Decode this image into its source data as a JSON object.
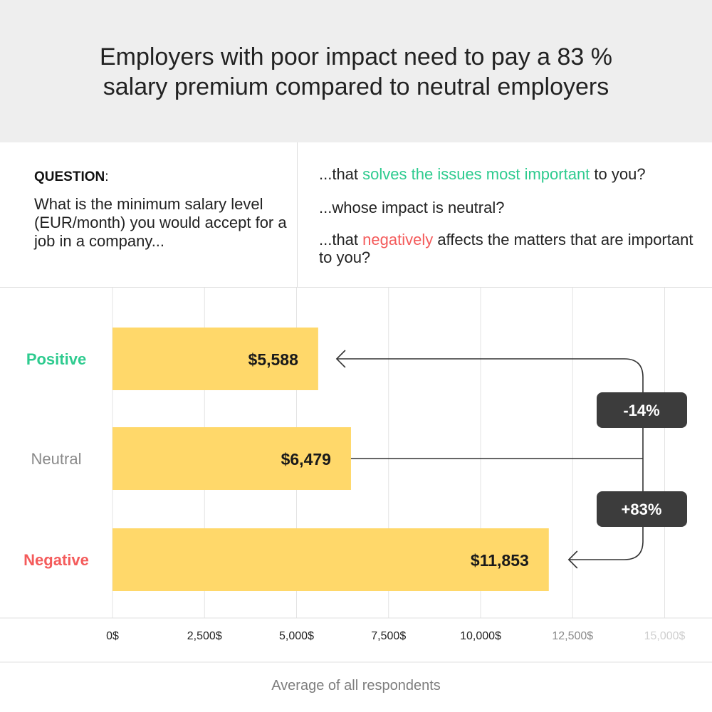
{
  "header": {
    "title": "Employers with poor impact need to pay a 83 % salary premium compared to neutral employers"
  },
  "question": {
    "heading": "QUESTION",
    "heading_colon": ":",
    "text": "What is the minimum salary level (EUR/month) you would accept for a job in a company...",
    "options": [
      {
        "prefix": "...that ",
        "highlight": "solves the issues most important",
        "suffix": " to you?",
        "color": "#2ecb8f"
      },
      {
        "prefix": "...whose impact is neutral?",
        "highlight": "",
        "suffix": "",
        "color": ""
      },
      {
        "prefix": "...that ",
        "highlight": "negatively",
        "suffix": " affects the matters that are important to you?",
        "color": "#f45b5b"
      }
    ]
  },
  "chart_data": {
    "type": "bar",
    "orientation": "horizontal",
    "categories": [
      "Positive",
      "Neutral",
      "Negative"
    ],
    "category_colors": [
      "#2ecb8f",
      "#8a8a8a",
      "#f45b5b"
    ],
    "values": [
      5588,
      6479,
      11853
    ],
    "value_labels": [
      "$5,588",
      "$6,479",
      "$11,853"
    ],
    "bar_color": "#ffd86a",
    "xlim": [
      0,
      15000
    ],
    "x_ticks": [
      0,
      2500,
      5000,
      7500,
      10000,
      12500,
      15000
    ],
    "x_tick_labels": [
      "0$",
      "2,500$",
      "5,000$",
      "7,500$",
      "10,000$",
      "12,500$",
      "15,000$"
    ],
    "xlabel": "Average of all respondents",
    "grid": true,
    "annotations": [
      {
        "label": "-14%",
        "from": "Neutral",
        "to": "Positive"
      },
      {
        "label": "+83%",
        "from": "Neutral",
        "to": "Negative"
      }
    ]
  }
}
